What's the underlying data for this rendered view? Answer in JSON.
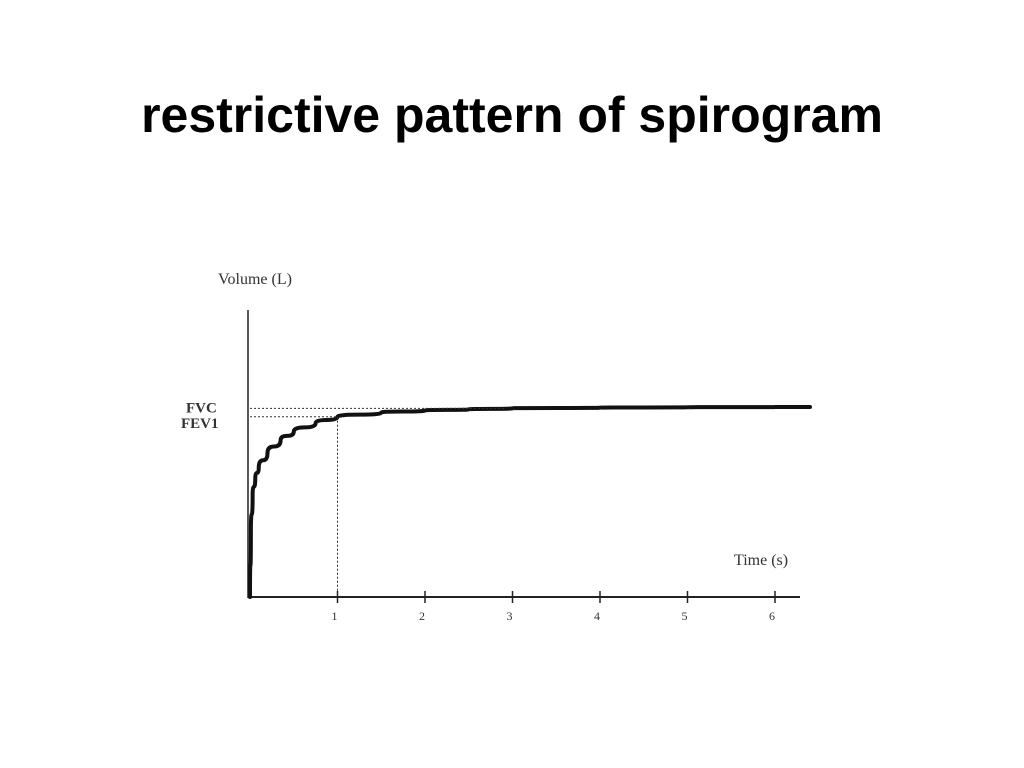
{
  "slide": {
    "title": "restrictive pattern of spirogram"
  },
  "chart_data": {
    "type": "line",
    "title": "",
    "xlabel": "Time (s)",
    "ylabel": "Volume (L)",
    "x_ticks": [
      "1",
      "2",
      "3",
      "4",
      "5",
      "6"
    ],
    "xlim": [
      0,
      6.4
    ],
    "markers": [
      {
        "label": "FVC",
        "level": 0.89
      },
      {
        "label": "FEV1",
        "level": 0.85
      }
    ],
    "fev1_time": 1,
    "series": [
      {
        "name": "",
        "x": [
          0,
          0.01,
          0.03,
          0.06,
          0.1,
          0.2,
          0.35,
          0.5,
          0.75,
          1,
          1.5,
          2,
          2.5,
          3,
          4,
          5,
          6,
          6.4
        ],
        "y": [
          0,
          0.3,
          0.48,
          0.56,
          0.61,
          0.68,
          0.74,
          0.78,
          0.82,
          0.85,
          0.87,
          0.88,
          0.885,
          0.89,
          0.893,
          0.895,
          0.896,
          0.896
        ]
      }
    ],
    "grid": false,
    "legend": "none"
  }
}
